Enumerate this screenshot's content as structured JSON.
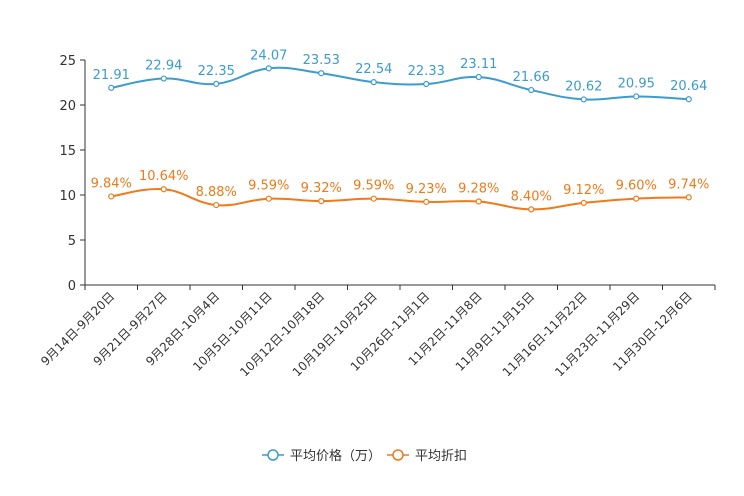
{
  "chart_data": {
    "type": "line",
    "title": "",
    "xlabel": "",
    "ylabel": "",
    "ylim": [
      0,
      25
    ],
    "yticks": [
      0,
      5,
      10,
      15,
      20,
      25
    ],
    "grid": false,
    "legend_position": "bottom-center",
    "categories": [
      "9月14日-9月20日",
      "9月21日-9月27日",
      "9月28日-10月4日",
      "10月5日-10月11日",
      "10月12日-10月18日",
      "10月19日-10月25日",
      "10月26日-11月1日",
      "11月2日-11月8日",
      "11月9日-11月15日",
      "11月16日-11月22日",
      "11月23日-11月29日",
      "11月30日-12月6日"
    ],
    "series": [
      {
        "name": "平均价格（万）",
        "color": "#3b9ccf",
        "values": [
          21.91,
          22.94,
          22.35,
          24.07,
          23.53,
          22.54,
          22.33,
          23.11,
          21.66,
          20.62,
          20.95,
          20.64
        ],
        "labels": [
          "21.91",
          "22.94",
          "22.35",
          "24.07",
          "23.53",
          "22.54",
          "22.33",
          "23.11",
          "21.66",
          "20.62",
          "20.95",
          "20.64"
        ]
      },
      {
        "name": "平均折扣",
        "color": "#f07a1a",
        "values": [
          9.84,
          10.64,
          8.88,
          9.59,
          9.32,
          9.59,
          9.23,
          9.28,
          8.4,
          9.12,
          9.6,
          9.74
        ],
        "labels": [
          "9.84%",
          "10.64%",
          "8.88%",
          "9.59%",
          "9.32%",
          "9.59%",
          "9.23%",
          "9.28%",
          "8.40%",
          "9.12%",
          "9.60%",
          "9.74%"
        ]
      }
    ]
  }
}
